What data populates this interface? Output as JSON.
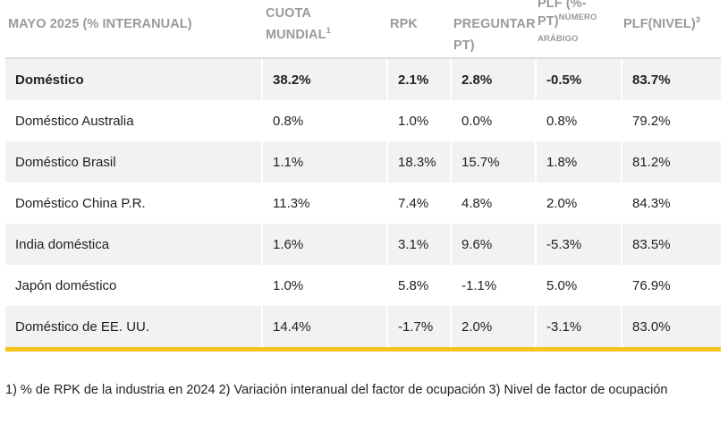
{
  "table": {
    "headers": [
      {
        "text": "MAYO 2025 (% INTERANUAL)",
        "sup": ""
      },
      {
        "line1": "CUOTA",
        "line2": "MUNDIAL",
        "sup": "1"
      },
      {
        "text": "RPK",
        "sup": ""
      },
      {
        "text": "PREGUNTAR PT)",
        "sup": ""
      },
      {
        "line1": "PLF (%-",
        "line2": "PT)",
        "sup_text": "NÚMERO",
        "line3": "ARÁBIGO"
      },
      {
        "text": "PLF(NIVEL)",
        "sup": "3"
      }
    ],
    "rows": [
      {
        "bold": true,
        "cells": [
          "Doméstico",
          "38.2%",
          "2.1%",
          "2.8%",
          "-0.5%",
          "83.7%"
        ]
      },
      {
        "bold": false,
        "cells": [
          "Doméstico Australia",
          "0.8%",
          "1.0%",
          "0.0%",
          "0.8%",
          "79.2%"
        ]
      },
      {
        "bold": false,
        "cells": [
          "Doméstico Brasil",
          "1.1%",
          "18.3%",
          "15.7%",
          "1.8%",
          "81.2%"
        ]
      },
      {
        "bold": false,
        "cells": [
          "Doméstico China P.R.",
          "11.3%",
          "7.4%",
          "4.8%",
          "2.0%",
          "84.3%"
        ]
      },
      {
        "bold": false,
        "cells": [
          "India doméstica",
          "1.6%",
          "3.1%",
          "9.6%",
          "-5.3%",
          "83.5%"
        ]
      },
      {
        "bold": false,
        "cells": [
          "Japón doméstico",
          "1.0%",
          "5.8%",
          "-1.1%",
          "5.0%",
          "76.9%"
        ]
      },
      {
        "bold": false,
        "cells": [
          "Doméstico de EE. UU.",
          "14.4%",
          "-1.7%",
          "2.0%",
          "-3.1%",
          "83.0%"
        ]
      }
    ]
  },
  "footnote": "1) % de RPK de la industria en 2024 2) Variación interanual del factor de ocupación 3) Nivel de factor de ocupación",
  "colors": {
    "accent_bar": "#f5c518",
    "header_text": "#9a9a9a",
    "stripe": "#f2f2f2"
  }
}
